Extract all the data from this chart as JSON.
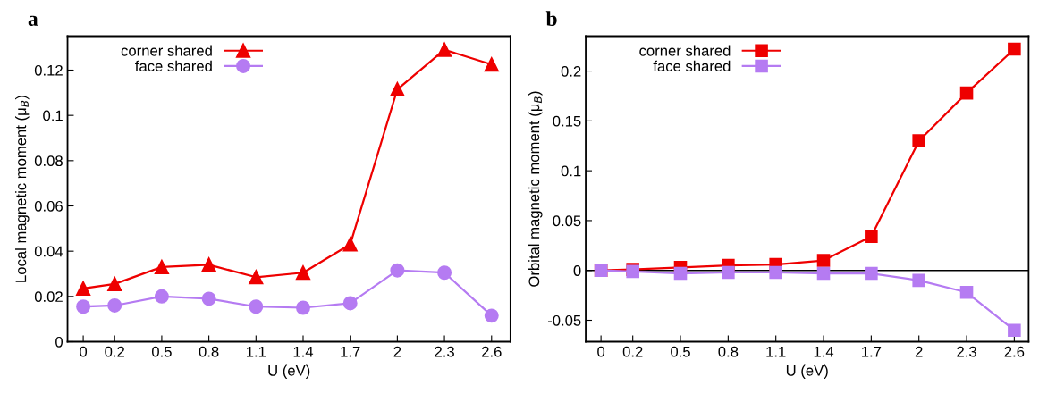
{
  "chart_data": [
    {
      "type": "line",
      "title": "a",
      "xlabel": "U (eV)",
      "ylabel": "Local magnetic moment (μ$_{B}$)",
      "x": [
        0,
        0.2,
        0.5,
        0.8,
        1.1,
        1.4,
        1.7,
        2,
        2.3,
        2.6
      ],
      "xlim": [
        -0.1,
        2.72
      ],
      "xticks": [
        0,
        0.2,
        0.5,
        0.8,
        1.1,
        1.4,
        1.7,
        2,
        2.3,
        2.6
      ],
      "ylim": [
        0,
        0.135
      ],
      "yticks": [
        0,
        0.02,
        0.04,
        0.06,
        0.08,
        0.1,
        0.12
      ],
      "legend": "top left",
      "grid": false,
      "series": [
        {
          "name": "corner shared",
          "color": "#ee0000",
          "marker": "triangle",
          "values": [
            0.0235,
            0.0255,
            0.033,
            0.034,
            0.0285,
            0.0305,
            0.043,
            0.1115,
            0.129,
            0.1225
          ]
        },
        {
          "name": "face shared",
          "color": "#b57bf2",
          "marker": "circle",
          "values": [
            0.0155,
            0.016,
            0.02,
            0.019,
            0.0155,
            0.015,
            0.017,
            0.0315,
            0.0305,
            0.0115
          ]
        }
      ]
    },
    {
      "type": "line",
      "title": "b",
      "xlabel": "U (eV)",
      "ylabel": "Orbital magnetic moment (μ$_{B}$)",
      "x": [
        0,
        0.2,
        0.5,
        0.8,
        1.1,
        1.4,
        1.7,
        2,
        2.3,
        2.6
      ],
      "xlim": [
        -0.096,
        2.69
      ],
      "xticks": [
        0,
        0.2,
        0.5,
        0.8,
        1.1,
        1.4,
        1.7,
        2,
        2.3,
        2.6
      ],
      "ylim": [
        -0.0715,
        0.235
      ],
      "yticks": [
        -0.05,
        0,
        0.05,
        0.1,
        0.15,
        0.2
      ],
      "legend": "top left",
      "grid": false,
      "ref_lines": [
        {
          "axis": "y",
          "value": 0,
          "color": "#000000"
        }
      ],
      "series": [
        {
          "name": "corner shared",
          "color": "#ee0000",
          "marker": "square",
          "values": [
            0,
            0.001,
            0.003,
            0.005,
            0.006,
            0.01,
            0.034,
            0.13,
            0.178,
            0.222
          ]
        },
        {
          "name": "face shared",
          "color": "#b57bf2",
          "marker": "square",
          "values": [
            0,
            -0.001,
            -0.003,
            -0.002,
            -0.002,
            -0.003,
            -0.003,
            -0.01,
            -0.022,
            -0.06
          ]
        }
      ]
    }
  ]
}
